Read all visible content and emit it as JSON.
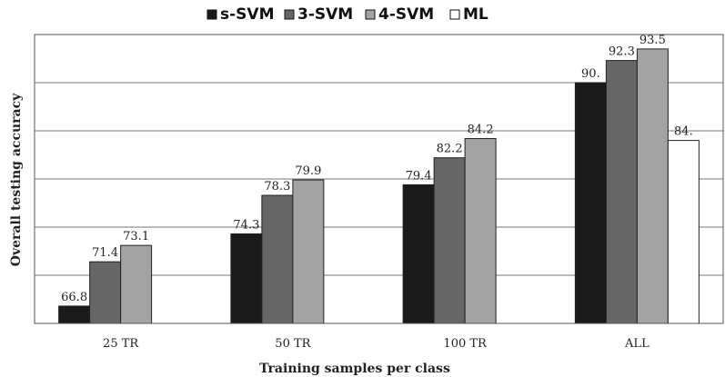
{
  "chart_data": {
    "type": "bar",
    "title": "",
    "xlabel": "Training samples per class",
    "ylabel": "Overall testing accuracy",
    "categories": [
      "25 TR",
      "50 TR",
      "100 TR",
      "ALL"
    ],
    "series": [
      {
        "name": "s-SVM",
        "color": "#1a1a1a",
        "values": [
          66.8,
          74.3,
          79.4,
          90.0
        ],
        "labels": [
          "66.8",
          "74.3",
          "79.4",
          "90."
        ]
      },
      {
        "name": "3-SVM",
        "color": "#666666",
        "values": [
          71.4,
          78.3,
          82.2,
          92.3
        ],
        "labels": [
          "71.4",
          "78.3",
          "82.2",
          "92.3"
        ]
      },
      {
        "name": "4-SVM",
        "color": "#a3a3a3",
        "values": [
          73.1,
          79.9,
          84.2,
          93.5
        ],
        "labels": [
          "73.1",
          "79.9",
          "84.2",
          "93.5"
        ]
      },
      {
        "name": "ML",
        "color": "#ffffff",
        "values": [
          null,
          null,
          null,
          84.0
        ],
        "labels": [
          "",
          "",
          "",
          "84."
        ]
      }
    ],
    "ylim": [
      65,
      95
    ],
    "y_gridlines": [
      65,
      70,
      75,
      80,
      85,
      90,
      95
    ],
    "grid": true,
    "legend_position": "top-center"
  }
}
